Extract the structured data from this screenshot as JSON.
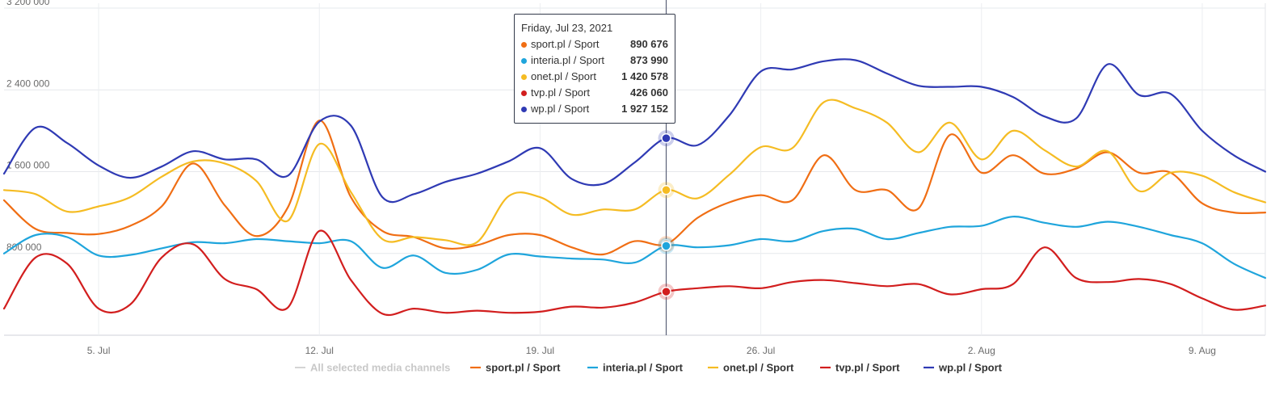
{
  "chart_data": {
    "type": "line",
    "x_labels": [
      "5. Jul",
      "12. Jul",
      "19. Jul",
      "26. Jul",
      "2. Aug",
      "9. Aug"
    ],
    "x_label_dates": [
      "2021-07-05",
      "2021-07-12",
      "2021-07-19",
      "2021-07-26",
      "2021-08-02",
      "2021-08-09"
    ],
    "x": [
      "2021-07-02",
      "2021-07-03",
      "2021-07-04",
      "2021-07-05",
      "2021-07-06",
      "2021-07-07",
      "2021-07-08",
      "2021-07-09",
      "2021-07-10",
      "2021-07-11",
      "2021-07-12",
      "2021-07-13",
      "2021-07-14",
      "2021-07-15",
      "2021-07-16",
      "2021-07-17",
      "2021-07-18",
      "2021-07-19",
      "2021-07-20",
      "2021-07-21",
      "2021-07-22",
      "2021-07-23",
      "2021-07-24",
      "2021-07-25",
      "2021-07-26",
      "2021-07-27",
      "2021-07-28",
      "2021-07-29",
      "2021-07-30",
      "2021-07-31",
      "2021-08-01",
      "2021-08-02",
      "2021-08-03",
      "2021-08-04",
      "2021-08-05",
      "2021-08-06",
      "2021-08-07",
      "2021-08-08",
      "2021-08-09",
      "2021-08-10",
      "2021-08-11"
    ],
    "y_ticks": [
      "800 000",
      "1 600 000",
      "2 400 000",
      "3 200 000"
    ],
    "y_tick_values": [
      800000,
      1600000,
      2400000,
      3200000
    ],
    "ylim": [
      0,
      3200000
    ],
    "grid": true,
    "legend_position": "bottom",
    "series": [
      {
        "name": "sport.pl / Sport",
        "color": "#f06e14",
        "values": [
          1320000,
          1040000,
          1000000,
          990000,
          1070000,
          1260000,
          1680000,
          1270000,
          970000,
          1250000,
          2100000,
          1350000,
          1020000,
          960000,
          850000,
          880000,
          980000,
          980000,
          860000,
          790000,
          920000,
          890676,
          1150000,
          1300000,
          1370000,
          1320000,
          1760000,
          1420000,
          1420000,
          1240000,
          1960000,
          1590000,
          1760000,
          1580000,
          1630000,
          1790000,
          1590000,
          1590000,
          1290000,
          1200000,
          1200000
        ]
      },
      {
        "name": "interia.pl / Sport",
        "color": "#1fa5dc",
        "values": [
          800000,
          980000,
          960000,
          780000,
          785000,
          850000,
          910000,
          900000,
          940000,
          920000,
          900000,
          920000,
          660000,
          780000,
          610000,
          640000,
          790000,
          770000,
          750000,
          740000,
          710000,
          873990,
          860000,
          880000,
          940000,
          920000,
          1020000,
          1040000,
          940000,
          1000000,
          1060000,
          1070000,
          1160000,
          1100000,
          1060000,
          1110000,
          1060000,
          980000,
          900000,
          700000,
          560000
        ]
      },
      {
        "name": "onet.pl / Sport",
        "color": "#f5bc23",
        "values": [
          1420000,
          1380000,
          1210000,
          1260000,
          1350000,
          1550000,
          1700000,
          1680000,
          1510000,
          1120000,
          1870000,
          1400000,
          940000,
          960000,
          930000,
          910000,
          1360000,
          1350000,
          1180000,
          1230000,
          1230000,
          1420578,
          1340000,
          1570000,
          1840000,
          1830000,
          2280000,
          2220000,
          2080000,
          1790000,
          2080000,
          1720000,
          2000000,
          1810000,
          1650000,
          1800000,
          1410000,
          1590000,
          1560000,
          1400000,
          1300000
        ]
      },
      {
        "name": "tvp.pl / Sport",
        "color": "#d21e1e",
        "values": [
          260000,
          760000,
          700000,
          260000,
          300000,
          760000,
          890000,
          550000,
          450000,
          270000,
          1020000,
          540000,
          210000,
          260000,
          220000,
          240000,
          220000,
          230000,
          280000,
          270000,
          320000,
          426060,
          460000,
          480000,
          460000,
          520000,
          540000,
          510000,
          480000,
          500000,
          400000,
          450000,
          500000,
          860000,
          560000,
          520000,
          550000,
          500000,
          360000,
          250000,
          290000
        ]
      },
      {
        "name": "wp.pl / Sport",
        "color": "#2f3ab4",
        "values": [
          1580000,
          2030000,
          1880000,
          1660000,
          1540000,
          1650000,
          1800000,
          1720000,
          1720000,
          1560000,
          2090000,
          2050000,
          1350000,
          1380000,
          1500000,
          1580000,
          1700000,
          1830000,
          1530000,
          1480000,
          1690000,
          1927152,
          1860000,
          2150000,
          2580000,
          2600000,
          2680000,
          2690000,
          2560000,
          2440000,
          2430000,
          2430000,
          2330000,
          2140000,
          2120000,
          2650000,
          2350000,
          2360000,
          2000000,
          1760000,
          1600000
        ]
      }
    ]
  },
  "legend": {
    "all_label": "All selected media channels",
    "items": [
      "sport.pl / Sport",
      "interia.pl / Sport",
      "onet.pl / Sport",
      "tvp.pl / Sport",
      "wp.pl / Sport"
    ]
  },
  "crosshair": {
    "date": "2021-07-23"
  },
  "tooltip": {
    "date": "Friday, Jul 23, 2021",
    "rows": [
      {
        "name": "sport.pl / Sport",
        "value": "890 676",
        "color": "#f06e14"
      },
      {
        "name": "interia.pl / Sport",
        "value": "873 990",
        "color": "#1fa5dc"
      },
      {
        "name": "onet.pl / Sport",
        "value": "1 420 578",
        "color": "#f5bc23"
      },
      {
        "name": "tvp.pl / Sport",
        "value": "426 060",
        "color": "#d21e1e"
      },
      {
        "name": "wp.pl / Sport",
        "value": "1 927 152",
        "color": "#2f3ab4"
      }
    ]
  }
}
